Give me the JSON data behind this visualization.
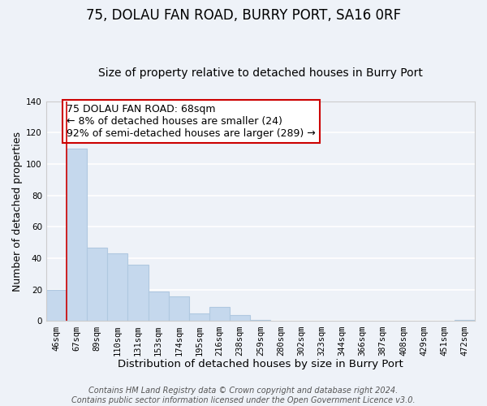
{
  "title": "75, DOLAU FAN ROAD, BURRY PORT, SA16 0RF",
  "subtitle": "Size of property relative to detached houses in Burry Port",
  "xlabel": "Distribution of detached houses by size in Burry Port",
  "ylabel": "Number of detached properties",
  "bar_color": "#c5d8ed",
  "bar_edge_color": "#b0c8e0",
  "bg_color": "#eef2f8",
  "grid_color": "white",
  "bins": [
    "46sqm",
    "67sqm",
    "89sqm",
    "110sqm",
    "131sqm",
    "153sqm",
    "174sqm",
    "195sqm",
    "216sqm",
    "238sqm",
    "259sqm",
    "280sqm",
    "302sqm",
    "323sqm",
    "344sqm",
    "366sqm",
    "387sqm",
    "408sqm",
    "429sqm",
    "451sqm",
    "472sqm"
  ],
  "heights": [
    20,
    110,
    47,
    43,
    36,
    19,
    16,
    5,
    9,
    4,
    1,
    0,
    0,
    0,
    0,
    0,
    0,
    0,
    0,
    0,
    1
  ],
  "ylim": [
    0,
    140
  ],
  "yticks": [
    0,
    20,
    40,
    60,
    80,
    100,
    120,
    140
  ],
  "vline_x": 0.5,
  "vline_color": "#cc0000",
  "annotation_line1": "75 DOLAU FAN ROAD: 68sqm",
  "annotation_line2": "← 8% of detached houses are smaller (24)",
  "annotation_line3": "92% of semi-detached houses are larger (289) →",
  "annotation_box_color": "white",
  "annotation_box_edge_color": "#cc0000",
  "footer_text": "Contains HM Land Registry data © Crown copyright and database right 2024.\nContains public sector information licensed under the Open Government Licence v3.0.",
  "title_fontsize": 12,
  "subtitle_fontsize": 10,
  "xlabel_fontsize": 9.5,
  "ylabel_fontsize": 9,
  "tick_fontsize": 7.5,
  "annotation_fontsize": 9,
  "footer_fontsize": 7
}
